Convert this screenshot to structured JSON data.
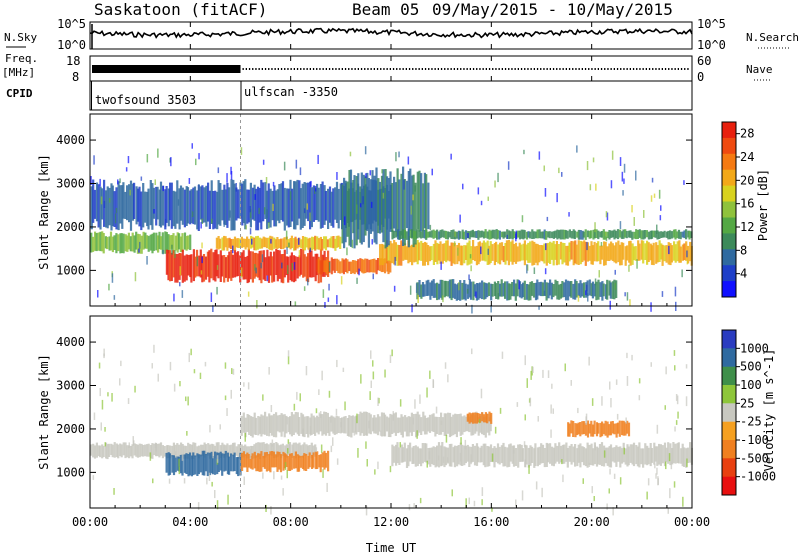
{
  "header": {
    "station": "Saskatoon (fitACF)",
    "beam": "Beam 05",
    "date_range": "09/May/2015 - 10/May/2015"
  },
  "strips": {
    "nsky_label": "N.Sky",
    "nsearch_label": "N.Search",
    "nsky_ticks": [
      "10^5",
      "10^0"
    ],
    "nsearch_ticks": [
      "10^5",
      "10^0"
    ],
    "freq_label_1": "Freq.",
    "freq_label_2": "[MHz]",
    "freq_ticks": [
      "18",
      "8"
    ],
    "nave_label": "Nave",
    "nave_ticks": [
      "60",
      "0"
    ],
    "cpid_label": "CPID",
    "cpid_segments": [
      {
        "name": "twofsound 3503",
        "start_hour": 0,
        "end_hour": 6
      },
      {
        "name": "ulfscan -3350",
        "start_hour": 6,
        "end_hour": 24
      }
    ]
  },
  "x_axis": {
    "label": "Time UT",
    "ticks": [
      "00:00",
      "04:00",
      "08:00",
      "12:00",
      "16:00",
      "20:00",
      "00:00"
    ]
  },
  "chart_data": [
    {
      "type": "heatmap",
      "title": "",
      "ylabel": "Slant Range [km]",
      "xlabel": "",
      "xlim": [
        0,
        24
      ],
      "ylim": [
        180,
        4600
      ],
      "yticks": [
        1000,
        2000,
        3000,
        4000
      ],
      "colorbar_label": "Power [dB]",
      "colorbar_ticks": [
        "4",
        "8",
        "12",
        "16",
        "20",
        "24",
        "28"
      ],
      "colorbar_range": [
        0,
        30
      ],
      "colorbar_colors": [
        "#1010ff",
        "#1e3fc8",
        "#2f6aa0",
        "#3c8a5a",
        "#54a844",
        "#8fc23c",
        "#d8d21e",
        "#f2a818",
        "#f57a12",
        "#ef4a10",
        "#e8200e"
      ],
      "bands": [
        {
          "t0": 0.0,
          "t1": 4.0,
          "r0": 1380,
          "r1": 1900,
          "value": 14
        },
        {
          "t0": 3.0,
          "t1": 9.5,
          "r0": 700,
          "r1": 1500,
          "value": 28
        },
        {
          "t0": 5.0,
          "t1": 10.0,
          "r0": 1450,
          "r1": 1800,
          "value": 20
        },
        {
          "t0": 9.0,
          "t1": 12.0,
          "r0": 900,
          "r1": 1300,
          "value": 24
        },
        {
          "t0": 11.5,
          "t1": 24.0,
          "r0": 1100,
          "r1": 1700,
          "value": 20
        },
        {
          "t0": 0.0,
          "t1": 12.0,
          "r0": 1900,
          "r1": 3100,
          "value": 6
        },
        {
          "t0": 10.0,
          "t1": 13.5,
          "r0": 1500,
          "r1": 3400,
          "value": 8
        },
        {
          "t0": 12.0,
          "t1": 24.0,
          "r0": 1700,
          "r1": 1950,
          "value": 10
        },
        {
          "t0": 13.0,
          "t1": 21.0,
          "r0": 300,
          "r1": 800,
          "value": 8
        }
      ]
    },
    {
      "type": "heatmap",
      "title": "",
      "ylabel": "Slant Range [km]",
      "xlabel": "Time UT",
      "xlim": [
        0,
        24
      ],
      "ylim": [
        180,
        4600
      ],
      "yticks": [
        1000,
        2000,
        3000,
        4000
      ],
      "colorbar_label": "Velocity [m s^-1]",
      "colorbar_ticks": [
        "1000",
        "500",
        "100",
        "25",
        "-25",
        "-100",
        "-500",
        "-1000"
      ],
      "colorbar_colors": [
        "#2a3cc0",
        "#2f6aa0",
        "#3f8f4a",
        "#8ec63a",
        "#c8c8c0",
        "#f5a020",
        "#f08020",
        "#e84010",
        "#e81010"
      ],
      "bands": [
        {
          "t0": 0.0,
          "t1": 9.0,
          "r0": 1300,
          "r1": 1700,
          "value": 0
        },
        {
          "t0": 3.0,
          "t1": 6.0,
          "r0": 900,
          "r1": 1500,
          "value": 200
        },
        {
          "t0": 6.0,
          "t1": 9.5,
          "r0": 1000,
          "r1": 1500,
          "value": -300
        },
        {
          "t0": 6.0,
          "t1": 16.0,
          "r0": 1800,
          "r1": 2400,
          "value": 0
        },
        {
          "t0": 12.0,
          "t1": 24.0,
          "r0": 1100,
          "r1": 1700,
          "value": 0
        },
        {
          "t0": 15.0,
          "t1": 16.0,
          "r0": 2100,
          "r1": 2400,
          "value": -300
        },
        {
          "t0": 19.0,
          "t1": 21.5,
          "r0": 1800,
          "r1": 2200,
          "value": -300
        }
      ]
    }
  ]
}
